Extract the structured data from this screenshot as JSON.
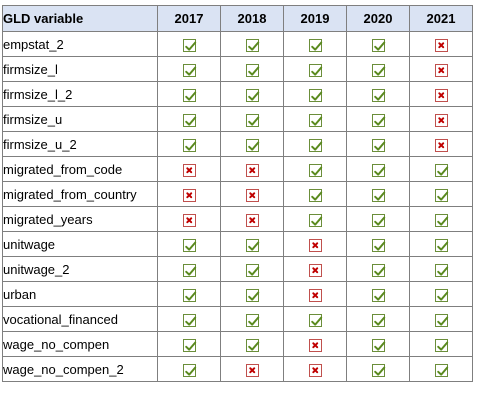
{
  "table": {
    "header_label": "GLD variable",
    "years": [
      "2017",
      "2018",
      "2019",
      "2020",
      "2021"
    ],
    "rows": [
      {
        "name": "empstat_2",
        "values": [
          "check",
          "check",
          "check",
          "check",
          "cross"
        ]
      },
      {
        "name": "firmsize_l",
        "values": [
          "check",
          "check",
          "check",
          "check",
          "cross"
        ]
      },
      {
        "name": "firmsize_l_2",
        "values": [
          "check",
          "check",
          "check",
          "check",
          "cross"
        ]
      },
      {
        "name": "firmsize_u",
        "values": [
          "check",
          "check",
          "check",
          "check",
          "cross"
        ]
      },
      {
        "name": "firmsize_u_2",
        "values": [
          "check",
          "check",
          "check",
          "check",
          "cross"
        ]
      },
      {
        "name": "migrated_from_code",
        "values": [
          "cross",
          "cross",
          "check",
          "check",
          "check"
        ]
      },
      {
        "name": "migrated_from_country",
        "values": [
          "cross",
          "cross",
          "check",
          "check",
          "check"
        ]
      },
      {
        "name": "migrated_years",
        "values": [
          "cross",
          "cross",
          "check",
          "check",
          "check"
        ]
      },
      {
        "name": "unitwage",
        "values": [
          "check",
          "check",
          "cross",
          "check",
          "check"
        ]
      },
      {
        "name": "unitwage_2",
        "values": [
          "check",
          "check",
          "cross",
          "check",
          "check"
        ]
      },
      {
        "name": "urban",
        "values": [
          "check",
          "check",
          "cross",
          "check",
          "check"
        ]
      },
      {
        "name": "vocational_financed",
        "values": [
          "check",
          "check",
          "check",
          "check",
          "check"
        ]
      },
      {
        "name": "wage_no_compen",
        "values": [
          "check",
          "check",
          "cross",
          "check",
          "check"
        ]
      },
      {
        "name": "wage_no_compen_2",
        "values": [
          "check",
          "cross",
          "cross",
          "check",
          "check"
        ]
      }
    ]
  },
  "icons": {
    "check": "check-icon",
    "cross": "cross-icon"
  },
  "colors": {
    "header_background": "#dae3f3",
    "check_color": "#5a8a1e",
    "cross_color": "#c00000",
    "border_color": "#7f7f7f"
  }
}
